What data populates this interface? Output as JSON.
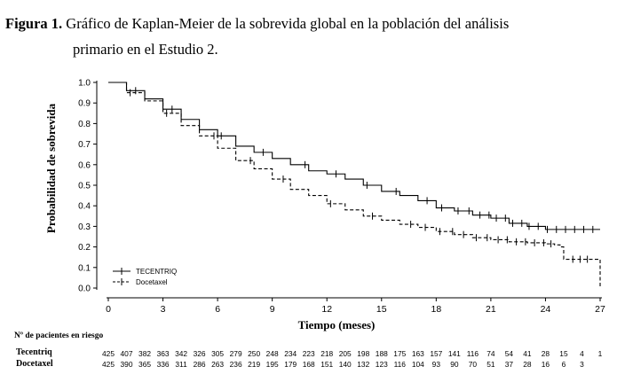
{
  "figure": {
    "label": "Figura 1.",
    "title_line1": "Gráfico de Kaplan-Meier de la sobrevida global en la población del análisis",
    "title_line2": "primario en el  Estudio 2."
  },
  "chart_data": {
    "type": "line",
    "xlabel": "Tiempo (meses)",
    "ylabel": "Probabilidad de sobrevida",
    "xlim": [
      0,
      27
    ],
    "ylim": [
      0,
      1.0
    ],
    "xticks": [
      0,
      3,
      6,
      9,
      12,
      15,
      18,
      21,
      24,
      27
    ],
    "yticks": [
      0.0,
      0.1,
      0.2,
      0.3,
      0.4,
      0.5,
      0.6,
      0.7,
      0.8,
      0.9,
      1.0
    ],
    "ytick_labels": [
      "0.0",
      "0.1",
      "0.2",
      "0.3",
      "0.4",
      "0.5",
      "0.6",
      "0.7",
      "0.8",
      "0.9",
      "1.0"
    ],
    "grid": false,
    "legend_position": "bottom-left",
    "series": [
      {
        "name": "TECENTRIQ",
        "line_style": "solid",
        "x": [
          0,
          1,
          2,
          3,
          4,
          5,
          6,
          7,
          8,
          9,
          10,
          11,
          12,
          13,
          14,
          15,
          16,
          17,
          18,
          19,
          20,
          21,
          22,
          23,
          24,
          25,
          26,
          27
        ],
        "y": [
          1.0,
          0.96,
          0.92,
          0.87,
          0.82,
          0.77,
          0.74,
          0.69,
          0.66,
          0.63,
          0.6,
          0.57,
          0.555,
          0.53,
          0.5,
          0.47,
          0.45,
          0.425,
          0.39,
          0.375,
          0.355,
          0.34,
          0.315,
          0.3,
          0.285,
          0.285,
          0.285,
          0.285
        ]
      },
      {
        "name": "Docetaxel",
        "line_style": "dashed",
        "x": [
          0,
          1,
          2,
          3,
          4,
          5,
          6,
          7,
          8,
          9,
          10,
          11,
          12,
          13,
          14,
          15,
          16,
          17,
          18,
          19,
          20,
          21,
          22,
          23,
          24,
          24.5,
          24.8,
          25,
          26,
          26.5,
          27
        ],
        "y": [
          1.0,
          0.95,
          0.91,
          0.85,
          0.79,
          0.74,
          0.68,
          0.62,
          0.58,
          0.53,
          0.48,
          0.45,
          0.41,
          0.38,
          0.35,
          0.33,
          0.31,
          0.295,
          0.275,
          0.26,
          0.245,
          0.235,
          0.225,
          0.22,
          0.215,
          0.21,
          0.2,
          0.14,
          0.14,
          0.14,
          0.0
        ]
      }
    ],
    "censor_marks": [
      [
        1.5,
        3.5,
        6.2,
        8.5,
        10.8,
        12.5,
        14.2,
        15.8,
        17.5,
        18.3,
        19.2,
        19.8,
        20.4,
        20.9,
        21.3,
        21.8,
        22.2,
        22.7,
        23.1,
        23.6,
        24.1,
        24.6,
        25.1,
        25.6,
        26.1,
        26.6
      ],
      [
        1.2,
        3.2,
        5.8,
        7.8,
        9.6,
        12.2,
        14.5,
        16.6,
        17.4,
        18.2,
        18.9,
        19.5,
        20.2,
        20.8,
        21.4,
        21.9,
        22.4,
        22.9,
        23.4,
        23.9,
        24.3,
        25.5,
        25.9,
        26.3
      ]
    ],
    "risk_table": {
      "header": "Nº de pacientes en riesgo",
      "rows": [
        {
          "label": "Tecentriq",
          "values": [
            "425",
            "407",
            "382",
            "363",
            "342",
            "326",
            "305",
            "279",
            "250",
            "248",
            "234",
            "223",
            "218",
            "205",
            "198",
            "188",
            "175",
            "163",
            "157",
            "141",
            "116",
            "74",
            "54",
            "41",
            "28",
            "15",
            "4",
            "1"
          ]
        },
        {
          "label": "Docetaxel",
          "values": [
            "425",
            "390",
            "365",
            "336",
            "311",
            "286",
            "263",
            "236",
            "219",
            "195",
            "179",
            "168",
            "151",
            "140",
            "132",
            "123",
            "116",
            "104",
            "93",
            "90",
            "70",
            "51",
            "37",
            "28",
            "16",
            "6",
            "3",
            ""
          ]
        }
      ]
    }
  }
}
